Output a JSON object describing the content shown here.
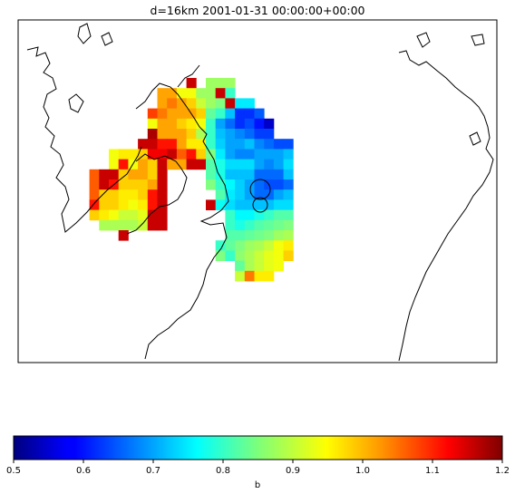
{
  "title": "d=16km 2001-01-31 00:00:00+00:00",
  "colorbar": {
    "label": "b",
    "min": 0.5,
    "max": 1.2,
    "ticks": [
      "0.5",
      "0.6",
      "0.7",
      "0.8",
      "0.9",
      "1.0",
      "1.1",
      "1.2"
    ],
    "colormap": "jet"
  },
  "chart_data": {
    "type": "heatmap",
    "title": "d=16km 2001-01-31 00:00:00+00:00",
    "value_label": "b",
    "value_range": [
      0.5,
      1.2
    ],
    "colormap": "jet",
    "grid_rows": [
      {
        "row": 0,
        "cells": [
          [
            18,
            1.15
          ],
          [
            20,
            0.87
          ],
          [
            21,
            0.87
          ],
          [
            22,
            0.87
          ]
        ]
      },
      {
        "row": 1,
        "cells": [
          [
            15,
            1.0
          ],
          [
            16,
            1.0
          ],
          [
            17,
            0.93
          ],
          [
            18,
            0.93
          ],
          [
            19,
            0.87
          ],
          [
            20,
            0.87
          ],
          [
            21,
            1.15
          ],
          [
            22,
            0.8
          ]
        ]
      },
      {
        "row": 2,
        "cells": [
          [
            15,
            1.0
          ],
          [
            16,
            1.03
          ],
          [
            17,
            1.0
          ],
          [
            18,
            0.97
          ],
          [
            19,
            0.9
          ],
          [
            20,
            0.87
          ],
          [
            21,
            0.85
          ],
          [
            22,
            1.15
          ],
          [
            23,
            0.75
          ],
          [
            24,
            0.75
          ]
        ]
      },
      {
        "row": 3,
        "cells": [
          [
            14,
            1.07
          ],
          [
            15,
            1.03
          ],
          [
            16,
            1.0
          ],
          [
            17,
            1.0
          ],
          [
            18,
            1.0
          ],
          [
            19,
            0.97
          ],
          [
            20,
            0.83
          ],
          [
            21,
            0.8
          ],
          [
            22,
            0.72
          ],
          [
            23,
            0.62
          ],
          [
            24,
            0.62
          ],
          [
            25,
            0.65
          ]
        ]
      },
      {
        "row": 4,
        "cells": [
          [
            14,
            0.93
          ],
          [
            15,
            1.0
          ],
          [
            16,
            1.0
          ],
          [
            17,
            0.97
          ],
          [
            18,
            0.95
          ],
          [
            19,
            0.93
          ],
          [
            20,
            0.8
          ],
          [
            21,
            0.7
          ],
          [
            22,
            0.66
          ],
          [
            23,
            0.62
          ],
          [
            24,
            0.64
          ],
          [
            25,
            0.6
          ],
          [
            26,
            0.55
          ]
        ]
      },
      {
        "row": 5,
        "cells": [
          [
            14,
            1.17
          ],
          [
            15,
            1.0
          ],
          [
            16,
            1.0
          ],
          [
            17,
            1.0
          ],
          [
            18,
            0.97
          ],
          [
            19,
            0.88
          ],
          [
            20,
            0.8
          ],
          [
            21,
            0.72
          ],
          [
            22,
            0.7
          ],
          [
            23,
            0.68
          ],
          [
            24,
            0.66
          ],
          [
            25,
            0.63
          ],
          [
            26,
            0.63
          ]
        ]
      },
      {
        "row": 6,
        "cells": [
          [
            13,
            1.15
          ],
          [
            14,
            1.15
          ],
          [
            15,
            1.1
          ],
          [
            16,
            1.1
          ],
          [
            17,
            1.0
          ],
          [
            18,
            0.95
          ],
          [
            19,
            0.95
          ],
          [
            20,
            0.8
          ],
          [
            21,
            0.73
          ],
          [
            22,
            0.7
          ],
          [
            23,
            0.7
          ],
          [
            24,
            0.72
          ],
          [
            25,
            0.68
          ],
          [
            26,
            0.66
          ],
          [
            27,
            0.64
          ],
          [
            28,
            0.64
          ]
        ]
      },
      {
        "row": 7,
        "cells": [
          [
            10,
            0.93
          ],
          [
            11,
            0.95
          ],
          [
            12,
            0.95
          ],
          [
            13,
            0.97
          ],
          [
            14,
            1.12
          ],
          [
            15,
            1.12
          ],
          [
            16,
            1.15
          ],
          [
            17,
            1.05
          ],
          [
            18,
            1.1
          ],
          [
            19,
            0.97
          ],
          [
            20,
            0.85
          ],
          [
            21,
            0.75
          ],
          [
            22,
            0.7
          ],
          [
            23,
            0.68
          ],
          [
            24,
            0.68
          ],
          [
            25,
            0.7
          ],
          [
            26,
            0.7
          ],
          [
            27,
            0.7
          ],
          [
            28,
            0.72
          ]
        ]
      },
      {
        "row": 8,
        "cells": [
          [
            10,
            0.93
          ],
          [
            11,
            1.1
          ],
          [
            12,
            0.93
          ],
          [
            13,
            1.0
          ],
          [
            14,
            0.97
          ],
          [
            15,
            1.15
          ],
          [
            16,
            1.0
          ],
          [
            17,
            1.0
          ],
          [
            18,
            1.15
          ],
          [
            19,
            1.15
          ],
          [
            20,
            0.82
          ],
          [
            21,
            0.78
          ],
          [
            22,
            0.74
          ],
          [
            23,
            0.74
          ],
          [
            24,
            0.74
          ],
          [
            25,
            0.7
          ],
          [
            26,
            0.68
          ],
          [
            27,
            0.7
          ],
          [
            28,
            0.74
          ]
        ]
      },
      {
        "row": 9,
        "cells": [
          [
            8,
            1.05
          ],
          [
            9,
            1.15
          ],
          [
            10,
            1.15
          ],
          [
            11,
            0.97
          ],
          [
            12,
            1.0
          ],
          [
            13,
            1.0
          ],
          [
            14,
            0.97
          ],
          [
            15,
            1.15
          ],
          [
            20,
            0.82
          ],
          [
            21,
            0.78
          ],
          [
            22,
            0.72
          ],
          [
            23,
            0.72
          ],
          [
            24,
            0.72
          ],
          [
            25,
            0.66
          ],
          [
            26,
            0.66
          ],
          [
            27,
            0.66
          ],
          [
            28,
            0.72
          ]
        ]
      },
      {
        "row": 10,
        "cells": [
          [
            8,
            1.05
          ],
          [
            9,
            1.15
          ],
          [
            10,
            1.1
          ],
          [
            11,
            0.97
          ],
          [
            12,
            0.97
          ],
          [
            13,
            0.97
          ],
          [
            14,
            1.0
          ],
          [
            15,
            1.15
          ],
          [
            20,
            0.85
          ],
          [
            21,
            0.8
          ],
          [
            22,
            0.76
          ],
          [
            23,
            0.73
          ],
          [
            24,
            0.7
          ],
          [
            25,
            0.66
          ],
          [
            26,
            0.64
          ],
          [
            27,
            0.64
          ],
          [
            28,
            0.66
          ]
        ]
      },
      {
        "row": 11,
        "cells": [
          [
            8,
            1.05
          ],
          [
            9,
            0.97
          ],
          [
            10,
            0.97
          ],
          [
            11,
            0.95
          ],
          [
            12,
            0.95
          ],
          [
            13,
            0.97
          ],
          [
            14,
            1.1
          ],
          [
            15,
            1.15
          ],
          [
            21,
            0.82
          ],
          [
            22,
            0.75
          ],
          [
            23,
            0.73
          ],
          [
            24,
            0.7
          ],
          [
            25,
            0.66
          ],
          [
            26,
            0.66
          ],
          [
            27,
            0.7
          ],
          [
            28,
            0.72
          ]
        ]
      },
      {
        "row": 12,
        "cells": [
          [
            8,
            1.1
          ],
          [
            9,
            0.97
          ],
          [
            10,
            0.97
          ],
          [
            11,
            0.95
          ],
          [
            12,
            0.93
          ],
          [
            13,
            0.95
          ],
          [
            14,
            1.1
          ],
          [
            15,
            1.15
          ],
          [
            20,
            1.15
          ],
          [
            21,
            0.77
          ],
          [
            22,
            0.74
          ],
          [
            23,
            0.72
          ],
          [
            24,
            0.72
          ],
          [
            25,
            0.72
          ],
          [
            26,
            0.72
          ],
          [
            27,
            0.74
          ],
          [
            28,
            0.74
          ]
        ]
      },
      {
        "row": 13,
        "cells": [
          [
            8,
            0.97
          ],
          [
            9,
            0.95
          ],
          [
            10,
            0.93
          ],
          [
            11,
            0.9
          ],
          [
            12,
            0.9
          ],
          [
            13,
            0.92
          ],
          [
            14,
            1.15
          ],
          [
            15,
            1.15
          ],
          [
            22,
            0.8
          ],
          [
            23,
            0.76
          ],
          [
            24,
            0.76
          ],
          [
            25,
            0.78
          ],
          [
            26,
            0.8
          ],
          [
            27,
            0.82
          ],
          [
            28,
            0.82
          ]
        ]
      },
      {
        "row": 14,
        "cells": [
          [
            9,
            0.88
          ],
          [
            10,
            0.88
          ],
          [
            11,
            0.88
          ],
          [
            12,
            0.88
          ],
          [
            13,
            0.9
          ],
          [
            14,
            1.15
          ],
          [
            15,
            1.15
          ],
          [
            22,
            0.8
          ],
          [
            23,
            0.78
          ],
          [
            24,
            0.8
          ],
          [
            25,
            0.82
          ],
          [
            26,
            0.83
          ],
          [
            27,
            0.84
          ],
          [
            28,
            0.85
          ]
        ]
      },
      {
        "row": 15,
        "cells": [
          [
            11,
            1.15
          ],
          [
            22,
            0.82
          ],
          [
            23,
            0.82
          ],
          [
            24,
            0.83
          ],
          [
            25,
            0.84
          ],
          [
            26,
            0.85
          ],
          [
            27,
            0.87
          ],
          [
            28,
            0.88
          ]
        ]
      },
      {
        "row": 16,
        "cells": [
          [
            21,
            0.8
          ],
          [
            22,
            0.83
          ],
          [
            23,
            0.85
          ],
          [
            24,
            0.87
          ],
          [
            25,
            0.88
          ],
          [
            26,
            0.9
          ],
          [
            27,
            0.93
          ],
          [
            28,
            0.95
          ]
        ]
      },
      {
        "row": 17,
        "cells": [
          [
            21,
            0.85
          ],
          [
            22,
            0.8
          ],
          [
            23,
            0.86
          ],
          [
            24,
            0.88
          ],
          [
            25,
            0.9
          ],
          [
            26,
            0.92
          ],
          [
            27,
            0.93
          ],
          [
            28,
            0.97
          ]
        ]
      },
      {
        "row": 18,
        "cells": [
          [
            23,
            0.83
          ],
          [
            24,
            0.88
          ],
          [
            25,
            0.9
          ],
          [
            26,
            0.92
          ],
          [
            27,
            0.93
          ]
        ]
      },
      {
        "row": 19,
        "cells": [
          [
            23,
            0.9
          ],
          [
            24,
            1.03
          ],
          [
            25,
            0.95
          ],
          [
            26,
            0.95
          ]
        ]
      }
    ]
  }
}
